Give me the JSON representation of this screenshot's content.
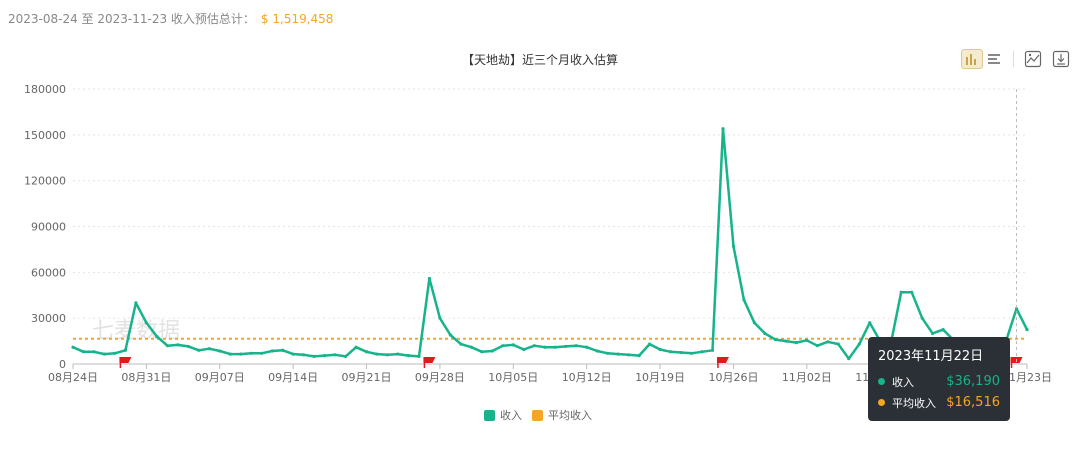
{
  "header": {
    "date_range": "2023-08-24 至 2023-11-23 收入预估总计：",
    "total": "$ 1,519,458"
  },
  "colors": {
    "income": "#17b38a",
    "average": "#f5a623",
    "accent": "#f5a623",
    "flag": "#e01b1b",
    "tooltip_bg": "#2b3036"
  },
  "toolbar": {
    "icons": [
      "bar-chart-icon",
      "list-icon",
      "image-download-icon",
      "download-icon"
    ]
  },
  "watermark": "七麦数据",
  "chart_data": {
    "type": "line",
    "title": "【天地劫】近三个月收入估算",
    "ylim": [
      0,
      180000
    ],
    "yticks": [
      0,
      30000,
      60000,
      90000,
      120000,
      150000,
      180000
    ],
    "x_tick_labels": [
      "08月24日",
      "08月31日",
      "09月07日",
      "09月14日",
      "09月21日",
      "09月28日",
      "10月05日",
      "10月12日",
      "10月19日",
      "10月26日",
      "11月02日",
      "11月09日",
      "11月16日",
      "11月23日"
    ],
    "series": [
      {
        "name": "收入",
        "color": "#17b38a",
        "values": [
          11000,
          8000,
          8000,
          6500,
          7000,
          9000,
          40000,
          27000,
          18000,
          12000,
          12500,
          11500,
          9000,
          10000,
          8500,
          6500,
          6500,
          7000,
          7000,
          8500,
          9000,
          6500,
          6000,
          5000,
          5500,
          6000,
          5000,
          11000,
          8000,
          6500,
          6000,
          6500,
          5500,
          5000,
          56000,
          30000,
          19000,
          13000,
          11000,
          8000,
          8500,
          12000,
          12500,
          9500,
          12000,
          11000,
          11000,
          11500,
          12000,
          11000,
          8500,
          7000,
          6500,
          6000,
          5500,
          13000,
          9500,
          8000,
          7500,
          7000,
          8000,
          9000,
          154000,
          77000,
          42000,
          27000,
          20000,
          16000,
          15000,
          14000,
          15500,
          12000,
          14500,
          13000,
          3500,
          13000,
          27000,
          15000,
          13000,
          47000,
          47000,
          30000,
          20000,
          22500,
          15500,
          13000,
          14000,
          12500,
          13500,
          15000,
          36190,
          22500
        ]
      },
      {
        "name": "平均收入",
        "color": "#f5a623",
        "values": [
          16516
        ]
      }
    ],
    "flag_markers": [
      5,
      34,
      62,
      90
    ],
    "legend": {
      "position": "bottom-center",
      "items": [
        "收入",
        "平均收入"
      ]
    },
    "grid": "horizontal-dashed",
    "tooltip": {
      "date": "2023年11月22日",
      "rows": [
        {
          "label": "收入",
          "value": "$36,190",
          "color": "#17b38a"
        },
        {
          "label": "平均收入",
          "value": "$16,516",
          "color": "#f5a623"
        }
      ]
    }
  }
}
